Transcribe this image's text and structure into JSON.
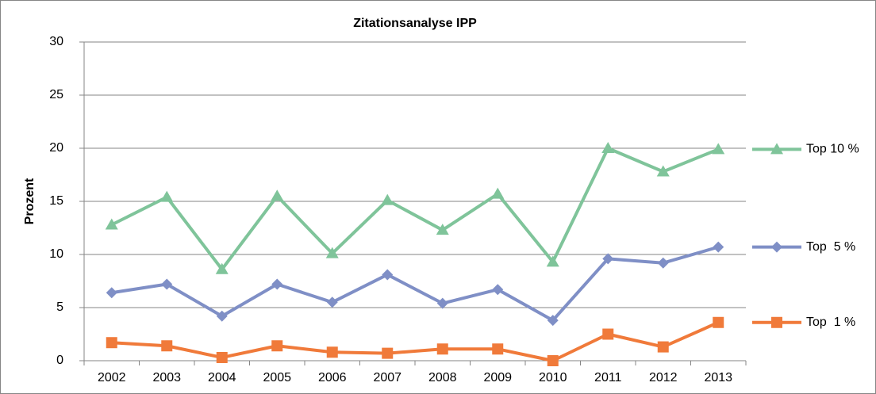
{
  "chart_data": {
    "type": "line",
    "title": "Zitationsanalyse IPP",
    "y_label": "Prozent",
    "categories": [
      "2002",
      "2003",
      "2004",
      "2005",
      "2006",
      "2007",
      "2008",
      "2009",
      "2010",
      "2011",
      "2012",
      "2013"
    ],
    "series": [
      {
        "name": "Top 10 %",
        "color": "#7fc49a",
        "marker": "triangle",
        "values": [
          12.8,
          15.4,
          8.6,
          15.5,
          10.1,
          15.1,
          12.3,
          15.7,
          9.3,
          20.0,
          17.8,
          19.9
        ]
      },
      {
        "name": "Top  5 %",
        "color": "#7f8fc6",
        "marker": "diamond",
        "values": [
          6.4,
          7.2,
          4.2,
          7.2,
          5.5,
          8.1,
          5.4,
          6.7,
          3.8,
          9.6,
          9.2,
          10.7
        ]
      },
      {
        "name": "Top  1 %",
        "color": "#f07a3a",
        "marker": "square",
        "values": [
          1.7,
          1.4,
          0.3,
          1.4,
          0.8,
          0.7,
          1.1,
          1.1,
          0.0,
          2.5,
          1.3,
          3.6
        ]
      }
    ],
    "ylim": [
      0,
      30
    ],
    "yticks": [
      0,
      5,
      10,
      15,
      20,
      25,
      30
    ],
    "grid": true,
    "legend": "right"
  }
}
